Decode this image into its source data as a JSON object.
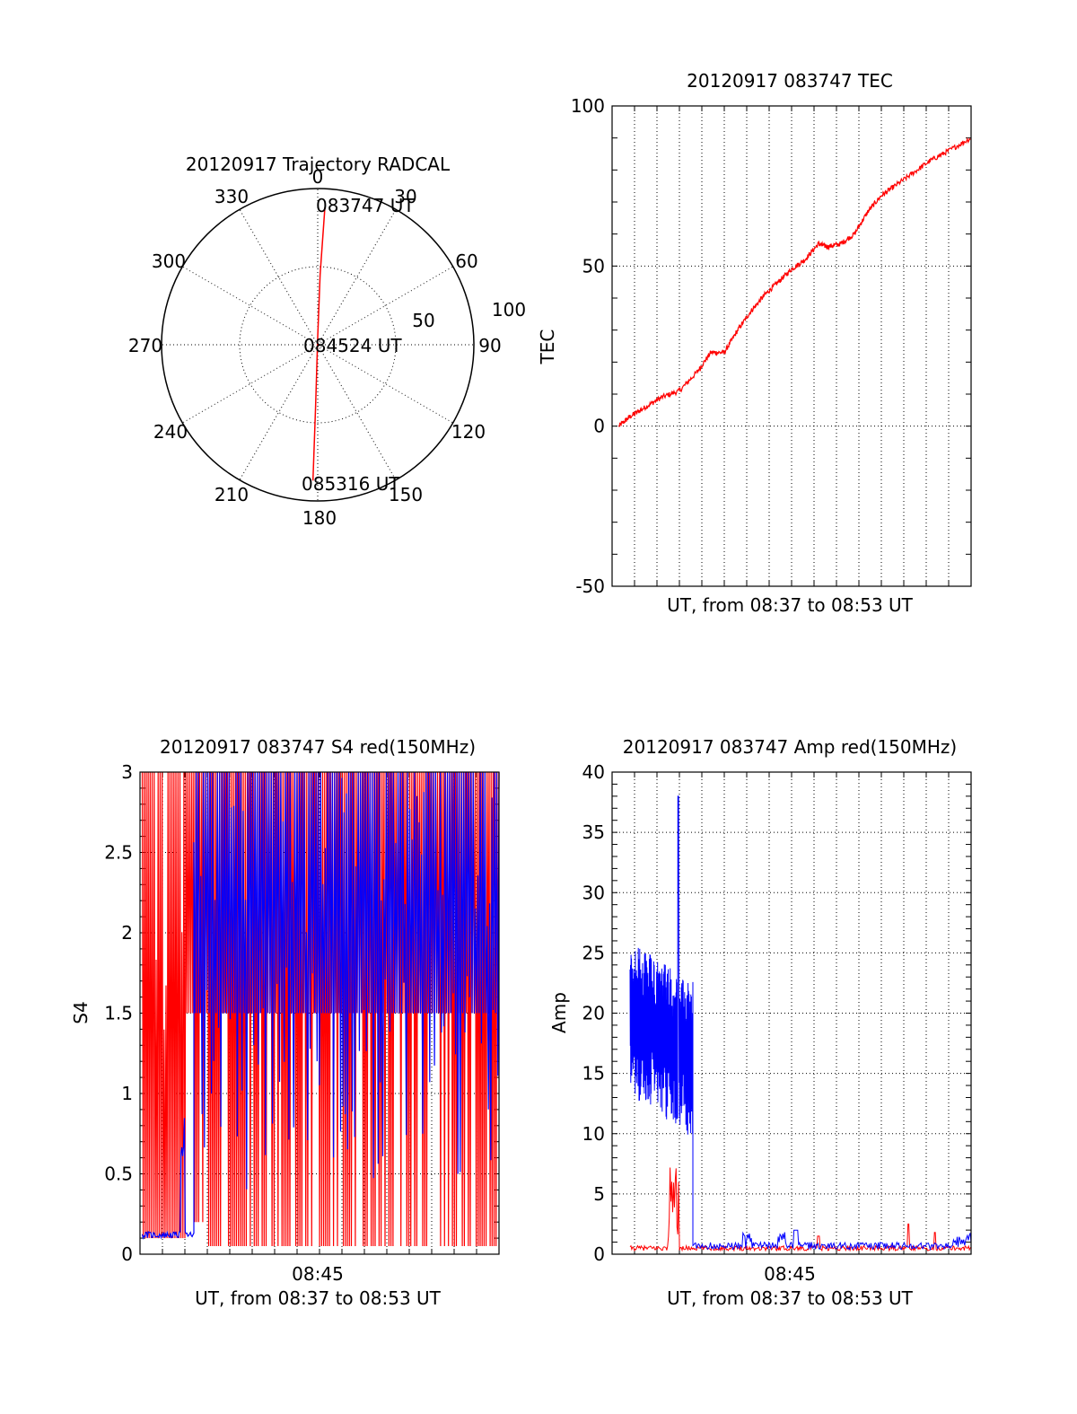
{
  "chart_data": [
    {
      "type": "polar",
      "title": "20120917 Trajectory RADCAL",
      "angle_labels": [
        "0",
        "30",
        "60",
        "90",
        "120",
        "150",
        "180",
        "210",
        "240",
        "270",
        "300",
        "330"
      ],
      "radial_labels": [
        "50",
        "100"
      ],
      "rlim": [
        0,
        100
      ],
      "grid": true,
      "series": [
        {
          "color": "#ff0000",
          "points": [
            {
              "azimuth": 3,
              "radius": 88
            },
            {
              "azimuth": 2,
              "radius": 45
            },
            {
              "azimuth": 0,
              "radius": 5
            },
            {
              "azimuth": 182,
              "radius": 40
            },
            {
              "azimuth": 182,
              "radius": 87
            }
          ]
        }
      ],
      "annotations": [
        {
          "text": "083747 UT",
          "azimuth": 14,
          "radius": 90
        },
        {
          "text": "084524 UT",
          "azimuth": 82,
          "radius": 20
        },
        {
          "text": "085316 UT",
          "azimuth": 166,
          "radius": 90
        }
      ]
    },
    {
      "type": "line",
      "title": "20120917 083747 TEC",
      "xlabel": "UT, from 08:37 to 08:53 UT",
      "ylabel": "TEC",
      "xlim": [
        0,
        16
      ],
      "ylim": [
        -50,
        100
      ],
      "yticks": [
        "-50",
        "0",
        "50",
        "100"
      ],
      "grid": true,
      "series": [
        {
          "color": "#ff0000",
          "x": [
            0.3,
            0.8,
            1.5,
            2.2,
            3.0,
            3.8,
            4.4,
            5.0,
            5.6,
            6.2,
            6.8,
            7.4,
            8.0,
            8.6,
            9.2,
            9.6,
            10.2,
            10.8,
            11.4,
            12.0,
            12.6,
            13.4,
            14.2,
            15.0,
            16.0
          ],
          "y": [
            0,
            3,
            6,
            9,
            11,
            17,
            23,
            23,
            30,
            36,
            41,
            45,
            49,
            52,
            57,
            56,
            57,
            60,
            67,
            72,
            75,
            79,
            83,
            86,
            90
          ]
        }
      ]
    },
    {
      "type": "line",
      "title": "20120917 083747 S4 red(150MHz)",
      "xlabel": "UT, from 08:37 to 08:53 UT",
      "ylabel": "S4",
      "xticks": [
        "08:45"
      ],
      "xlim": [
        0,
        16
      ],
      "ylim": [
        0,
        3
      ],
      "yticks": [
        "0",
        "0.5",
        "1",
        "1.5",
        "2",
        "2.5",
        "3"
      ],
      "grid": true,
      "series": [
        {
          "color": "#ff0000",
          "note_values": [
            3.0,
            0.1,
            3.0,
            0.1,
            3.0
          ]
        },
        {
          "color": "#0000ff",
          "note_values": [
            0.12,
            0.12,
            0.12,
            3.0,
            1.5,
            3.0
          ]
        }
      ]
    },
    {
      "type": "line",
      "title": "20120917 083747 Amp red(150MHz)",
      "xlabel": "UT, from 08:37 to 08:53 UT",
      "ylabel": "Amp",
      "xticks": [
        "08:45"
      ],
      "xlim": [
        0,
        16
      ],
      "ylim": [
        0,
        40
      ],
      "yticks": [
        "0",
        "5",
        "10",
        "15",
        "20",
        "25",
        "30",
        "35",
        "40"
      ],
      "grid": true,
      "series": [
        {
          "color": "#0000ff",
          "x": [
            0.0,
            0.5,
            1.0,
            1.5,
            2.0,
            2.4,
            2.6,
            2.8,
            3.0,
            3.2,
            3.5,
            3.6,
            4.0,
            6.0,
            8.0,
            10.0,
            12.0,
            14.0,
            16.0
          ],
          "y": [
            20,
            19,
            19,
            18,
            18,
            17,
            38,
            17,
            17,
            16,
            16,
            0.5,
            0.5,
            0.8,
            1.0,
            0.5,
            0.6,
            0.7,
            0.8
          ]
        },
        {
          "color": "#ff0000",
          "x": [
            0.0,
            1.0,
            2.0,
            2.5,
            2.7,
            2.9,
            3.0,
            5.0,
            8.0,
            13.0,
            16.0
          ],
          "y": [
            0.3,
            0.3,
            0.3,
            2.0,
            7.0,
            1.0,
            0.3,
            0.3,
            0.5,
            0.4,
            0.3
          ]
        }
      ]
    }
  ]
}
